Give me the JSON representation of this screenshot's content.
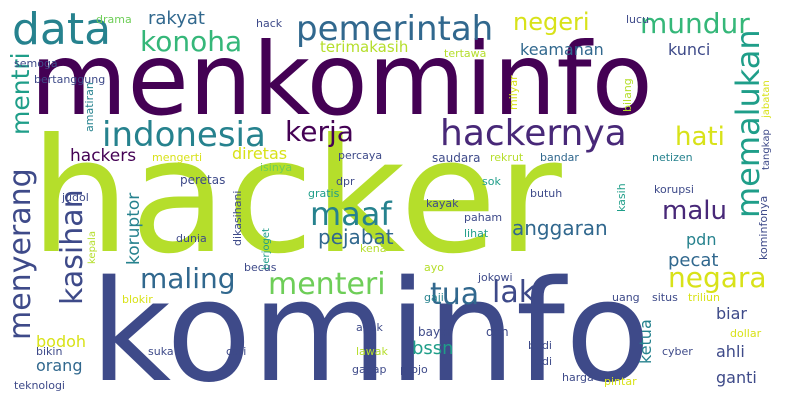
{
  "colors": {
    "dark_purple": "#440154",
    "purple": "#482878",
    "indigo": "#3e4a89",
    "blue": "#31688e",
    "teal_blue": "#26828e",
    "teal": "#1f9e89",
    "green": "#35b779",
    "light_green": "#6ece58",
    "lime": "#b5de2b",
    "yellow": "#d8e219",
    "bright_yellow": "#fde725"
  },
  "words": {
    "hacker": "hacker",
    "kominfo": "kominfo",
    "menkominfo": "menkominfo",
    "data": "data",
    "konoha": "konoha",
    "pemerintah": "pemerintah",
    "negeri": "negeri",
    "mundur": "mundur",
    "memalukan": "memalukan",
    "indonesia": "indonesia",
    "kerja": "kerja",
    "hackernya": "hackernya",
    "hati": "hati",
    "mentri": "mentri",
    "hackers": "hackers",
    "diretas": "diretas",
    "menyerang": "menyerang",
    "kasihan": "kasihan",
    "maaf": "maaf",
    "malu": "malu",
    "pejabat": "pejabat",
    "anggaran": "anggaran",
    "koruptor": "koruptor",
    "pecat": "pecat",
    "maling": "maling",
    "menteri": "menteri",
    "negara": "negara",
    "tua": "tua",
    "laki": "laki",
    "rakyat": "rakyat",
    "keamanan": "keamanan",
    "kunci": "kunci",
    "terimakasih": "terimakasih",
    "pdn": "pdn",
    "biar": "biar",
    "bodoh": "bodoh",
    "orang": "orang",
    "bssn": "bssn",
    "ketua": "ketua",
    "ahli": "ahli",
    "ganti": "ganti",
    "drama": "drama",
    "hack": "hack",
    "lucu": "lucu",
    "semoga": "semoga",
    "bertanggung": "bertanggung",
    "tertawa": "tertawa",
    "bilang": "bilang",
    "jabatan": "jabatan",
    "amatiran": "amatiran",
    "milyar": "milyar",
    "mengerti": "mengerti",
    "percaya": "percaya",
    "saudara": "saudara",
    "rekrut": "rekrut",
    "bandar": "bandar",
    "netizen": "netizen",
    "tangkap": "tangkap",
    "kominfonya": "kominfonya",
    "isinya": "isinya",
    "dikasihani": "dikasihani",
    "peretas": "peretas",
    "judol": "judol",
    "dpr": "dpr",
    "sok": "sok",
    "gratis": "gratis",
    "kayak": "kayak",
    "butuh": "butuh",
    "kasih": "kasih",
    "korupsi": "korupsi",
    "paham": "paham",
    "lihat": "lihat",
    "berjoget": "berjoget",
    "dunia": "dunia",
    "kena": "kena",
    "kepala": "kepala",
    "becus": "becus",
    "ayo": "ayo",
    "jokowi": "jokowi",
    "blokir": "blokir",
    "gaji": "gaji",
    "uang": "uang",
    "situs": "situs",
    "triliun": "triliun",
    "anak": "anak",
    "bayar": "bayar",
    "deh": "deh",
    "dollar": "dollar",
    "bikin": "bikin",
    "suka": "suka",
    "cari": "cari",
    "lawak": "lawak",
    "budi": "budi",
    "judi": "judi",
    "cyber": "cyber",
    "teknologi": "teknologi",
    "gagap": "gagap",
    "projo": "projo",
    "harga": "harga",
    "pintar": "pintar"
  }
}
